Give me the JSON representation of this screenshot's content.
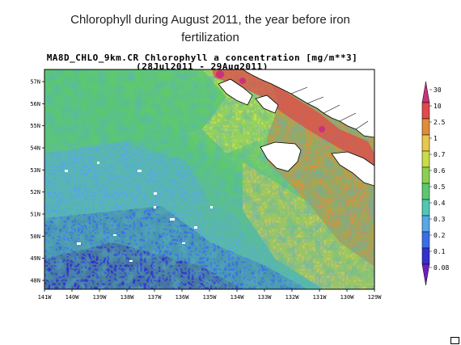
{
  "slide": {
    "title_line1": "Chlorophyll  during August 2011, the year before iron",
    "title_line2": "fertilization"
  },
  "plot": {
    "title_line1": "MA8D_CHLO_9km.CR Chlorophyll a concentration [mg/m**3]",
    "title_line2": "(28Jul2011 - 29Aug2011)"
  },
  "map": {
    "longitude_labels": [
      "141W",
      "140W",
      "139W",
      "138W",
      "137W",
      "136W",
      "135W",
      "134W",
      "133W",
      "132W",
      "131W",
      "130W",
      "129W"
    ],
    "latitude_labels": [
      "57N",
      "56N",
      "55N",
      "54N",
      "53N",
      "52N",
      "51N",
      "50N",
      "49N",
      "48N"
    ]
  },
  "colorbar": {
    "labels": [
      "30",
      "10",
      "2.5",
      "1",
      "0.7",
      "0.6",
      "0.5",
      "0.4",
      "0.3",
      "0.2",
      "0.1",
      "0.08"
    ],
    "colors": [
      "#c8327a",
      "#e04a4a",
      "#e08c3c",
      "#e8c84c",
      "#c8dc48",
      "#8cd050",
      "#5cc870",
      "#4ec8b4",
      "#56a8e6",
      "#3a6ee6",
      "#3232cc",
      "#6e1ebe"
    ]
  }
}
